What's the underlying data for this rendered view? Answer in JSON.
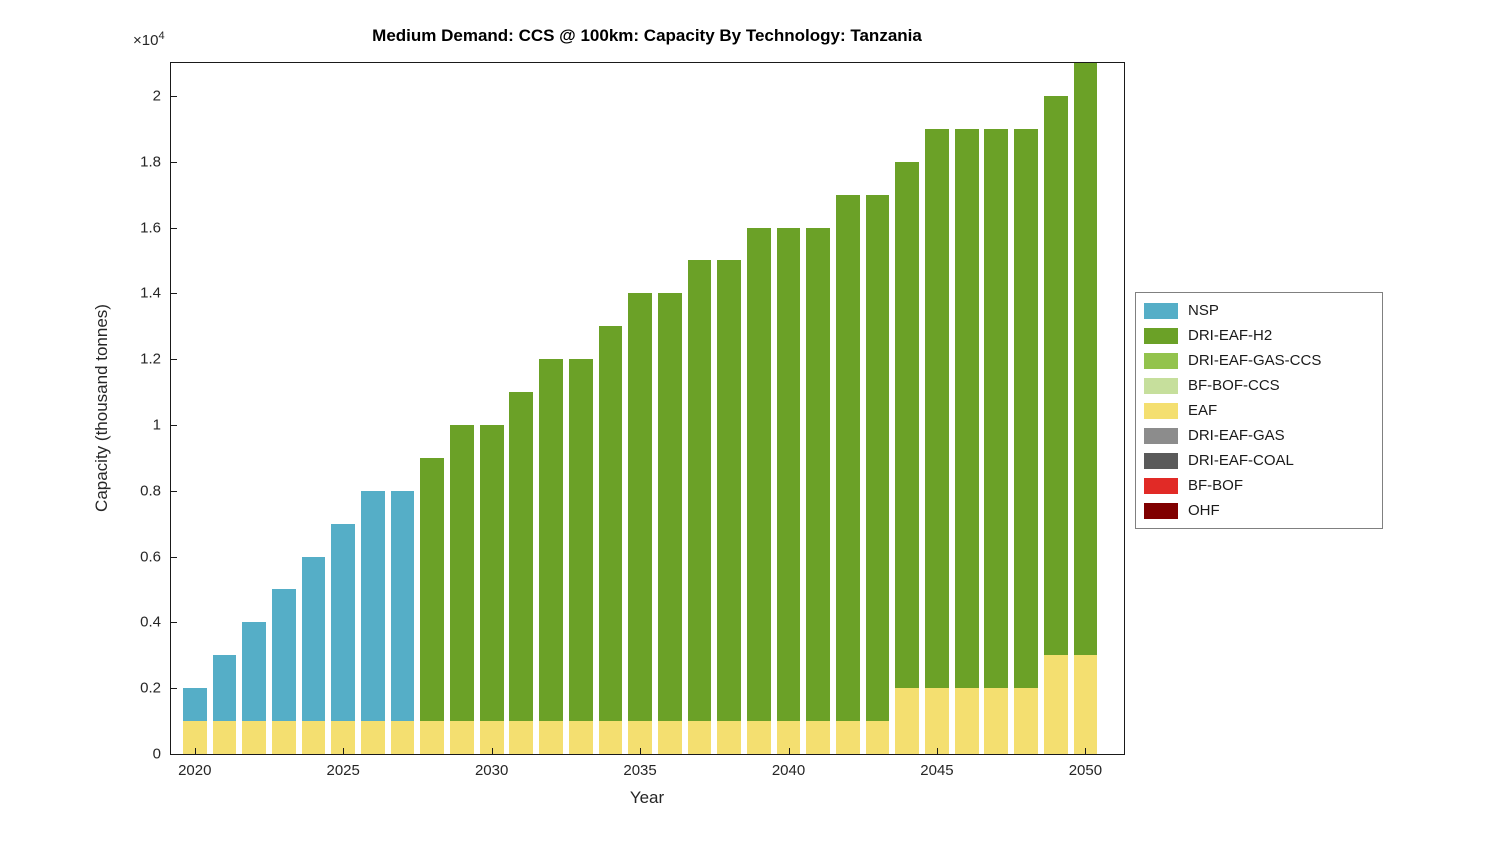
{
  "chart_data": {
    "type": "bar",
    "stacked": true,
    "title": "Medium Demand: CCS @ 100km: Capacity By Technology: Tanzania",
    "xlabel": "Year",
    "ylabel": "Capacity (thousand tonnes)",
    "y_multiplier_base": "×10",
    "y_multiplier_exponent": "4",
    "units": "thousand tonnes",
    "grid": false,
    "legend_position": "right-outside",
    "xlim": [
      2019.2,
      2051.3
    ],
    "ylim": [
      0,
      21000
    ],
    "x": [
      2020,
      2021,
      2022,
      2023,
      2024,
      2025,
      2026,
      2027,
      2028,
      2029,
      2030,
      2031,
      2032,
      2033,
      2034,
      2035,
      2036,
      2037,
      2038,
      2039,
      2040,
      2041,
      2042,
      2043,
      2044,
      2045,
      2046,
      2047,
      2048,
      2049,
      2050
    ],
    "x_tick_values": [
      2020,
      2025,
      2030,
      2035,
      2040,
      2045,
      2050
    ],
    "x_tick_labels": [
      "2020",
      "2025",
      "2030",
      "2035",
      "2040",
      "2045",
      "2050"
    ],
    "y_tick_values": [
      0,
      2000,
      4000,
      6000,
      8000,
      10000,
      12000,
      14000,
      16000,
      18000,
      20000
    ],
    "y_tick_labels": [
      "0",
      "0.2",
      "0.4",
      "0.6",
      "0.8",
      "1",
      "1.2",
      "1.4",
      "1.6",
      "1.8",
      "2"
    ],
    "series": [
      {
        "name": "OHF",
        "color": "#800000",
        "values": []
      },
      {
        "name": "BF-BOF",
        "color": "#E12A26",
        "values": []
      },
      {
        "name": "DRI-EAF-COAL",
        "color": "#5A5A5A",
        "values": []
      },
      {
        "name": "DRI-EAF-GAS",
        "color": "#8C8C8C",
        "values": []
      },
      {
        "name": "EAF",
        "color": "#F4DF70",
        "values": [
          1000,
          1000,
          1000,
          1000,
          1000,
          1000,
          1000,
          1000,
          1000,
          1000,
          1000,
          1000,
          1000,
          1000,
          1000,
          1000,
          1000,
          1000,
          1000,
          1000,
          1000,
          1000,
          1000,
          1000,
          2000,
          2000,
          2000,
          2000,
          2000,
          3000,
          3000
        ]
      },
      {
        "name": "BF-BOF-CCS",
        "color": "#C6DF9C",
        "values": []
      },
      {
        "name": "DRI-EAF-GAS-CCS",
        "color": "#93C34D",
        "values": []
      },
      {
        "name": "DRI-EAF-H2",
        "color": "#6BA127",
        "values": [
          0,
          0,
          0,
          0,
          0,
          0,
          0,
          0,
          8000,
          9000,
          9000,
          10000,
          11000,
          11000,
          12000,
          13000,
          13000,
          14000,
          14000,
          15000,
          15000,
          15000,
          16000,
          16000,
          16000,
          17000,
          17000,
          17000,
          17000,
          17000,
          18000
        ]
      },
      {
        "name": "NSP",
        "color": "#55AEC7",
        "values": [
          1000,
          2000,
          3000,
          4000,
          5000,
          6000,
          7000,
          7000,
          0,
          0,
          0,
          0,
          0,
          0,
          0,
          0,
          0,
          0,
          0,
          0,
          0,
          0,
          0,
          0,
          0,
          0,
          0,
          0,
          0,
          0,
          0
        ]
      }
    ],
    "legend": [
      {
        "label": "NSP",
        "color": "#55AEC7"
      },
      {
        "label": "DRI-EAF-H2",
        "color": "#6BA127"
      },
      {
        "label": "DRI-EAF-GAS-CCS",
        "color": "#93C34D"
      },
      {
        "label": "BF-BOF-CCS",
        "color": "#C6DF9C"
      },
      {
        "label": "EAF",
        "color": "#F4DF70"
      },
      {
        "label": "DRI-EAF-GAS",
        "color": "#8C8C8C"
      },
      {
        "label": "DRI-EAF-COAL",
        "color": "#5A5A5A"
      },
      {
        "label": "BF-BOF",
        "color": "#E12A26"
      },
      {
        "label": "OHF",
        "color": "#800000"
      }
    ]
  }
}
